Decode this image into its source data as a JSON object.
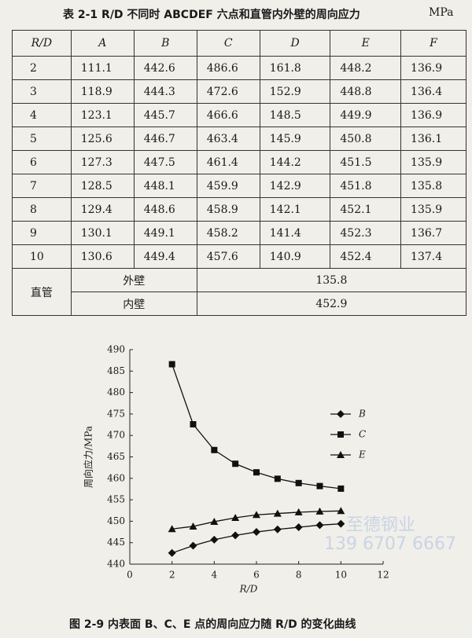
{
  "table": {
    "title": "表 2-1  R/D 不同时 ABCDEF 六点和直管内外壁的周向应力",
    "unit": "MPa",
    "header": [
      "R/D",
      "A",
      "B",
      "C",
      "D",
      "E",
      "F"
    ],
    "rows": [
      [
        "2",
        "111.1",
        "442.6",
        "486.6",
        "161.8",
        "448.2",
        "136.9"
      ],
      [
        "3",
        "118.9",
        "444.3",
        "472.6",
        "152.9",
        "448.8",
        "136.4"
      ],
      [
        "4",
        "123.1",
        "445.7",
        "466.6",
        "148.5",
        "449.9",
        "136.9"
      ],
      [
        "5",
        "125.6",
        "446.7",
        "463.4",
        "145.9",
        "450.8",
        "136.1"
      ],
      [
        "6",
        "127.3",
        "447.5",
        "461.4",
        "144.2",
        "451.5",
        "135.9"
      ],
      [
        "7",
        "128.5",
        "448.1",
        "459.9",
        "142.9",
        "451.8",
        "135.8"
      ],
      [
        "8",
        "129.4",
        "448.6",
        "458.9",
        "142.1",
        "452.1",
        "135.9"
      ],
      [
        "9",
        "130.1",
        "449.1",
        "458.2",
        "141.4",
        "452.3",
        "136.7"
      ],
      [
        "10",
        "130.6",
        "449.4",
        "457.6",
        "140.9",
        "452.4",
        "137.4"
      ]
    ],
    "pipe": {
      "label": "直管",
      "rows": [
        [
          "外壁",
          "135.8"
        ],
        [
          "内壁",
          "452.9"
        ]
      ]
    }
  },
  "chart_data": {
    "type": "line",
    "x_label": "R/D",
    "y_label": "周向应力/MPa",
    "x": [
      2,
      3,
      4,
      5,
      6,
      7,
      8,
      9,
      10
    ],
    "series": [
      {
        "name": "B",
        "color": "#111111",
        "marker": "diamond",
        "values": [
          442.6,
          444.3,
          445.7,
          446.7,
          447.5,
          448.1,
          448.6,
          449.1,
          449.4
        ]
      },
      {
        "name": "C",
        "color": "#111111",
        "marker": "square",
        "values": [
          486.6,
          472.6,
          466.6,
          463.4,
          461.4,
          459.9,
          458.9,
          458.2,
          457.6
        ]
      },
      {
        "name": "E",
        "color": "#111111",
        "marker": "triangle",
        "values": [
          448.2,
          448.8,
          449.9,
          450.8,
          451.5,
          451.8,
          452.1,
          452.3,
          452.4
        ]
      }
    ],
    "xlim": [
      0,
      12
    ],
    "xticks": [
      0,
      2,
      4,
      6,
      8,
      10,
      12
    ],
    "ylim": [
      440,
      490
    ],
    "yticks": [
      440,
      445,
      450,
      455,
      460,
      465,
      470,
      475,
      480,
      485,
      490
    ]
  },
  "figure_caption": "图 2-9  内表面 B、C、E 点的周向应力随 R/D 的变化曲线",
  "watermark": {
    "name": "至德钢业",
    "phone": "139 6707 6667"
  }
}
